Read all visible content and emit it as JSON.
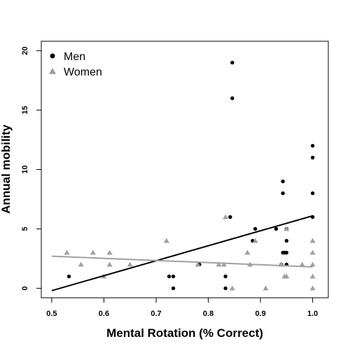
{
  "chart_data": {
    "type": "scatter",
    "title": "",
    "xlabel": "Mental Rotation (% Correct)",
    "ylabel": "Annual mobility",
    "xlim": [
      0.48,
      1.03
    ],
    "ylim": [
      -0.8,
      20.8
    ],
    "xticks": [
      0.5,
      0.6,
      0.7,
      0.8,
      0.9,
      1.0
    ],
    "xtick_labels": [
      "0.5",
      "0.6",
      "0.7",
      "0.8",
      "0.9",
      "1.0"
    ],
    "yticks": [
      0,
      5,
      10,
      15,
      20
    ],
    "ytick_labels": [
      "0",
      "5",
      "10",
      "15",
      "20"
    ],
    "grid": false,
    "legend_position": "top-left",
    "series": [
      {
        "name": "Men",
        "marker": "circle",
        "color": "#000000",
        "points": [
          [
            0.533,
            1
          ],
          [
            0.725,
            1
          ],
          [
            0.733,
            0
          ],
          [
            0.733,
            1
          ],
          [
            0.783,
            2
          ],
          [
            0.833,
            0
          ],
          [
            0.833,
            1
          ],
          [
            0.842,
            6
          ],
          [
            0.846,
            19
          ],
          [
            0.846,
            16
          ],
          [
            0.885,
            4
          ],
          [
            0.89,
            5
          ],
          [
            0.93,
            5
          ],
          [
            0.94,
            2
          ],
          [
            0.943,
            8
          ],
          [
            0.943,
            9
          ],
          [
            0.943,
            3
          ],
          [
            0.946,
            3
          ],
          [
            0.95,
            2
          ],
          [
            0.95,
            4
          ],
          [
            0.95,
            5
          ],
          [
            0.95,
            3
          ],
          [
            1.0,
            12
          ],
          [
            1.0,
            11
          ],
          [
            1.0,
            8
          ],
          [
            1.0,
            6
          ]
        ],
        "trend": [
          [
            0.5,
            -0.2
          ],
          [
            1.0,
            6.1
          ]
        ]
      },
      {
        "name": "Women",
        "marker": "triangle",
        "color": "#a0a0a0",
        "points": [
          [
            0.529,
            3
          ],
          [
            0.556,
            2
          ],
          [
            0.579,
            3
          ],
          [
            0.6,
            1
          ],
          [
            0.611,
            3
          ],
          [
            0.611,
            2
          ],
          [
            0.65,
            2
          ],
          [
            0.72,
            4
          ],
          [
            0.78,
            2
          ],
          [
            0.82,
            2
          ],
          [
            0.83,
            2
          ],
          [
            0.833,
            6
          ],
          [
            0.846,
            0
          ],
          [
            0.875,
            3
          ],
          [
            0.88,
            2
          ],
          [
            0.89,
            4
          ],
          [
            0.91,
            0
          ],
          [
            0.94,
            2
          ],
          [
            0.946,
            1
          ],
          [
            0.95,
            5
          ],
          [
            0.95,
            1
          ],
          [
            1.0,
            4
          ],
          [
            1.0,
            3
          ],
          [
            1.0,
            2
          ],
          [
            1.0,
            1
          ],
          [
            1.0,
            0
          ],
          [
            0.98,
            2
          ]
        ],
        "trend": [
          [
            0.5,
            2.7
          ],
          [
            1.0,
            1.8
          ]
        ]
      }
    ]
  }
}
